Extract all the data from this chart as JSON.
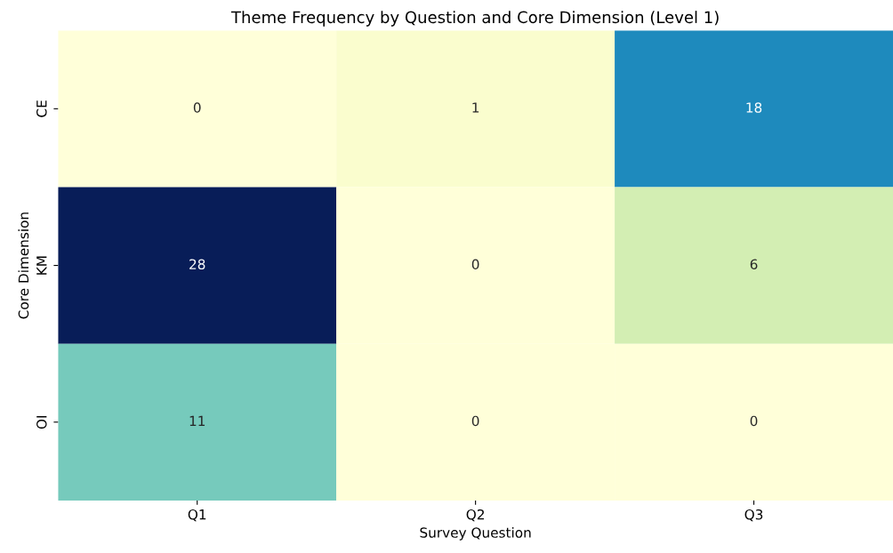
{
  "chart_data": {
    "type": "heatmap",
    "title": "Theme Frequency by Question and Core Dimension (Level 1)",
    "xlabel": "Survey Question",
    "ylabel": "Core Dimension",
    "categories": [
      "Q1",
      "Q2",
      "Q3"
    ],
    "y_categories": [
      "CE",
      "KM",
      "OI"
    ],
    "cells": [
      [
        0,
        1,
        18
      ],
      [
        28,
        0,
        6
      ],
      [
        11,
        0,
        0
      ]
    ],
    "data_labels": true
  }
}
